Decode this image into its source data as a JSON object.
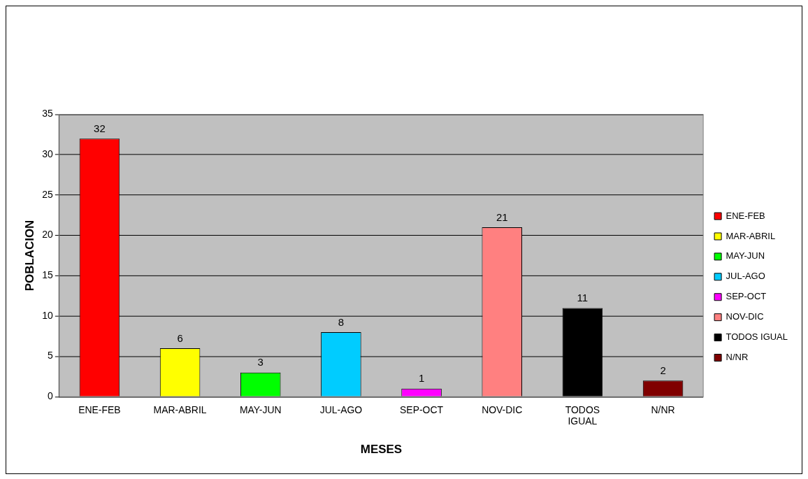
{
  "chart_data": {
    "type": "bar",
    "xlabel": "MESES",
    "ylabel": "POBLACION",
    "categories": [
      "ENE-FEB",
      "MAR-ABRIL",
      "MAY-JUN",
      "JUL-AGO",
      "SEP-OCT",
      "NOV-DIC",
      "TODOS IGUAL",
      "N/NR"
    ],
    "series": [
      {
        "name": "ENE-FEB",
        "color": "#ff0000",
        "values": [
          32,
          null,
          null,
          null,
          null,
          null,
          null,
          null
        ]
      },
      {
        "name": "MAR-ABRIL",
        "color": "#ffff00",
        "values": [
          null,
          6,
          null,
          null,
          null,
          null,
          null,
          null
        ]
      },
      {
        "name": "MAY-JUN",
        "color": "#00ff00",
        "values": [
          null,
          null,
          3,
          null,
          null,
          null,
          null,
          null
        ]
      },
      {
        "name": "JUL-AGO",
        "color": "#00ccff",
        "values": [
          null,
          null,
          null,
          8,
          null,
          null,
          null,
          null
        ]
      },
      {
        "name": "SEP-OCT",
        "color": "#ff00ff",
        "values": [
          null,
          null,
          null,
          null,
          1,
          null,
          null,
          null
        ]
      },
      {
        "name": "NOV-DIC",
        "color": "#ff8080",
        "values": [
          null,
          null,
          null,
          null,
          null,
          21,
          null,
          null
        ]
      },
      {
        "name": "TODOS IGUAL",
        "color": "#000000",
        "values": [
          null,
          null,
          null,
          null,
          null,
          null,
          11,
          null
        ]
      },
      {
        "name": "N/NR",
        "color": "#800000",
        "values": [
          null,
          null,
          null,
          null,
          null,
          null,
          null,
          2
        ]
      }
    ],
    "ylim": [
      0,
      35
    ],
    "yticks": [
      0,
      5,
      10,
      15,
      20,
      25,
      30,
      35
    ],
    "grid": "y",
    "legend": "right",
    "data_labels": true
  }
}
